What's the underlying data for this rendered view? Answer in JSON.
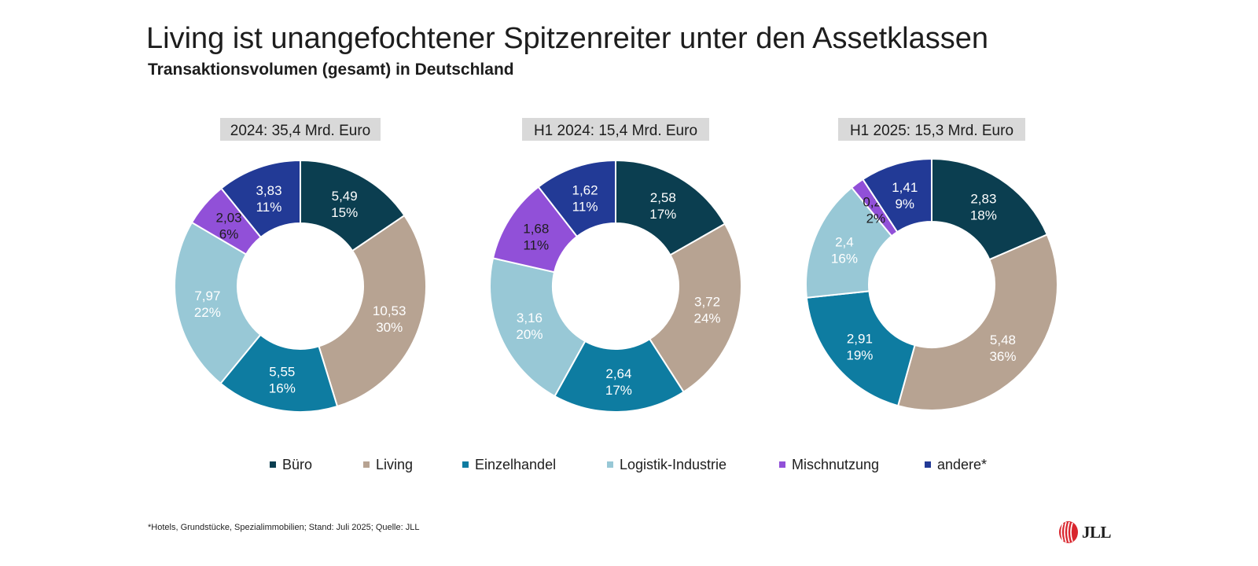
{
  "title": "Living ist unangefochtener Spitzenreiter unter den Assetklassen",
  "subtitle": "Transaktionsvolumen (gesamt) in Deutschland",
  "colors": {
    "Büro": "#0b3e50",
    "Living": "#b7a392",
    "Einzelhandel": "#0e7ca1",
    "Logistik-Industrie": "#98c8d6",
    "Mischnutzung": "#9150d8",
    "andere*": "#223a96"
  },
  "legend": {
    "items": [
      "Büro",
      "Living",
      "Einzelhandel",
      "Logistik-Industrie",
      "Mischnutzung",
      "andere*"
    ]
  },
  "chart_data": [
    {
      "type": "donut",
      "title": "2024: 35,4 Mrd. Euro",
      "categories": [
        "Büro",
        "Living",
        "Einzelhandel",
        "Logistik-Industrie",
        "Mischnutzung",
        "andere*"
      ],
      "values": [
        5.49,
        10.53,
        5.55,
        7.97,
        2.03,
        3.83
      ],
      "value_labels": [
        "5,49",
        "10,53",
        "5,55",
        "7,97",
        "2,03",
        "3,83"
      ],
      "percent_labels": [
        "15%",
        "30%",
        "16%",
        "22%",
        "6%",
        "11%"
      ]
    },
    {
      "type": "donut",
      "title": "H1 2024: 15,4 Mrd. Euro",
      "categories": [
        "Büro",
        "Living",
        "Einzelhandel",
        "Logistik-Industrie",
        "Mischnutzung",
        "andere*"
      ],
      "values": [
        2.58,
        3.72,
        2.64,
        3.16,
        1.68,
        1.62
      ],
      "value_labels": [
        "2,58",
        "3,72",
        "2,64",
        "3,16",
        "1,68",
        "1,62"
      ],
      "percent_labels": [
        "17%",
        "24%",
        "17%",
        "20%",
        "11%",
        "11%"
      ]
    },
    {
      "type": "donut",
      "title": "H1 2025: 15,3 Mrd. Euro",
      "categories": [
        "Büro",
        "Living",
        "Einzelhandel",
        "Logistik-Industrie",
        "Mischnutzung",
        "andere*"
      ],
      "values": [
        2.83,
        5.48,
        2.91,
        2.4,
        0.27,
        1.41
      ],
      "value_labels": [
        "2,83",
        "5,48",
        "2,91",
        "2,4",
        "0,27",
        "1,41"
      ],
      "percent_labels": [
        "18%",
        "36%",
        "19%",
        "16%",
        "2%",
        "9%"
      ]
    }
  ],
  "footnote": "*Hotels, Grundstücke, Spezialimmobilien; Stand: Juli 2025; Quelle: JLL",
  "logo": {
    "text": "JLL",
    "color": "#d9262e"
  }
}
